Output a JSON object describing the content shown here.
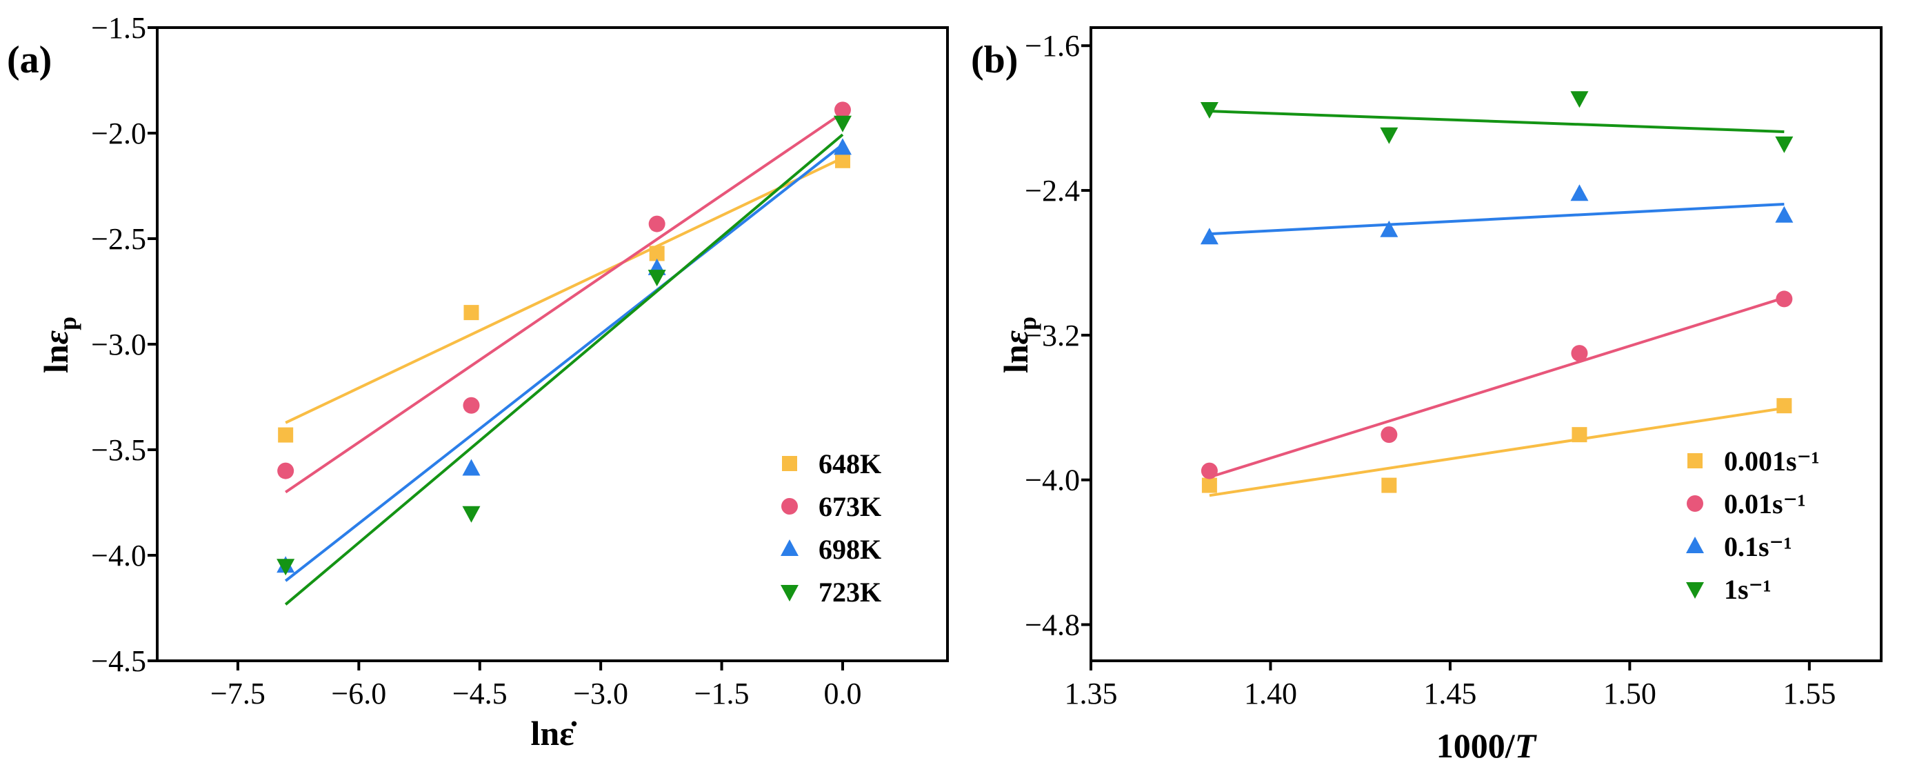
{
  "figure": {
    "panel_a_label": "(a)",
    "panel_b_label": "(b)"
  },
  "chart_data": [
    {
      "type": "scatter",
      "panel": "(a)",
      "title": "",
      "xlabel": "lnε̇",
      "ylabel": "lnεp",
      "xlim": [
        -8.5,
        1.3
      ],
      "ylim": [
        -4.5,
        -1.5
      ],
      "xticks": [
        -7.5,
        -6.0,
        -4.5,
        -3.0,
        -1.5,
        0.0
      ],
      "xtick_labels": [
        "−7.5",
        "−6.0",
        "−4.5",
        "−3.0",
        "−1.5",
        "0.0"
      ],
      "yticks": [
        -4.5,
        -4.0,
        -3.5,
        -3.0,
        -2.5,
        -2.0,
        -1.5
      ],
      "ytick_labels": [
        "−4.5",
        "−4.0",
        "−3.5",
        "−3.0",
        "−2.5",
        "−2.0",
        "−1.5"
      ],
      "legend_position": "bottom-right",
      "fit_lines": true,
      "x": [
        -6.908,
        -4.605,
        -2.303,
        0.0
      ],
      "series": [
        {
          "name": "648K",
          "color": "#f9bd44",
          "marker": "square",
          "values": [
            -3.43,
            -2.85,
            -2.57,
            -2.13
          ]
        },
        {
          "name": "673K",
          "color": "#e8567a",
          "marker": "circle",
          "values": [
            -3.6,
            -3.29,
            -2.43,
            -1.89
          ]
        },
        {
          "name": "698K",
          "color": "#2b7ee9",
          "marker": "triangle",
          "values": [
            -4.05,
            -3.59,
            -2.64,
            -2.07
          ]
        },
        {
          "name": "723K",
          "color": "#149414",
          "marker": "triangle-down",
          "values": [
            -4.05,
            -3.8,
            -2.68,
            -1.95
          ]
        }
      ]
    },
    {
      "type": "scatter",
      "panel": "(b)",
      "title": "",
      "xlabel": "1000/T",
      "ylabel": "lnεp",
      "xlim": [
        1.35,
        1.57
      ],
      "ylim": [
        -5.0,
        -1.5
      ],
      "xticks": [
        1.35,
        1.4,
        1.45,
        1.5,
        1.55
      ],
      "xtick_labels": [
        "1.35",
        "1.40",
        "1.45",
        "1.50",
        "1.55"
      ],
      "yticks": [
        -4.8,
        -4.0,
        -3.2,
        -2.4,
        -1.6
      ],
      "ytick_labels": [
        "−4.8",
        "−4.0",
        "−3.2",
        "−2.4",
        "−1.6"
      ],
      "legend_position": "bottom-right",
      "fit_lines": true,
      "x": [
        1.383,
        1.433,
        1.486,
        1.543
      ],
      "series": [
        {
          "name": "0.001s⁻¹",
          "color": "#f9bd44",
          "marker": "square",
          "values": [
            -4.03,
            -4.03,
            -3.75,
            -3.59
          ]
        },
        {
          "name": "0.01s⁻¹",
          "color": "#e8567a",
          "marker": "circle",
          "values": [
            -3.95,
            -3.75,
            -3.3,
            -3.0
          ]
        },
        {
          "name": "0.1s⁻¹",
          "color": "#2b7ee9",
          "marker": "triangle",
          "values": [
            -2.66,
            -2.62,
            -2.42,
            -2.54
          ]
        },
        {
          "name": "1s⁻¹",
          "color": "#149414",
          "marker": "triangle-down",
          "values": [
            -1.95,
            -2.09,
            -1.89,
            -2.14
          ]
        }
      ]
    }
  ]
}
